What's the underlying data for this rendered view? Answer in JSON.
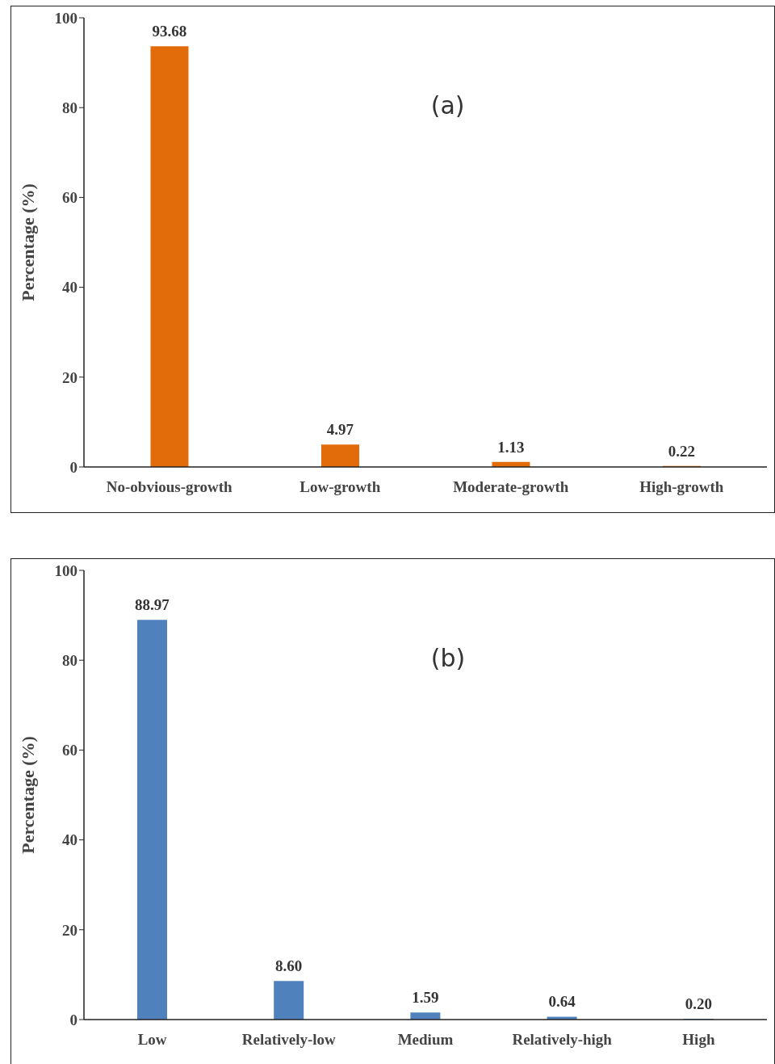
{
  "chart_data": [
    {
      "type": "bar",
      "ylabel": "Percentage (%)",
      "categories": [
        "No-obvious-growth",
        "Low-growth",
        "Moderate-growth",
        "High-growth"
      ],
      "values": [
        93.68,
        4.97,
        1.13,
        0.22
      ],
      "value_labels": [
        "93.68",
        "4.97",
        "1.13",
        "0.22"
      ],
      "color": "#e36c0a",
      "ylim": [
        0,
        100
      ],
      "yticks": [
        0,
        20,
        40,
        60,
        80,
        100
      ],
      "grid": false,
      "annotations": [
        "(a)"
      ]
    },
    {
      "type": "bar",
      "ylabel": "Percentage (%)",
      "categories": [
        "Low",
        "Relatively-low",
        "Medium",
        "Relatively-high",
        "High"
      ],
      "values": [
        88.97,
        8.6,
        1.59,
        0.64,
        0.2
      ],
      "value_labels": [
        "88.97",
        "8.60",
        "1.59",
        "0.64",
        "0.20"
      ],
      "color": "#4f81bd",
      "ylim": [
        0,
        100
      ],
      "yticks": [
        0,
        20,
        40,
        60,
        80,
        100
      ],
      "grid": false,
      "annotations": [
        "(b)"
      ]
    }
  ]
}
